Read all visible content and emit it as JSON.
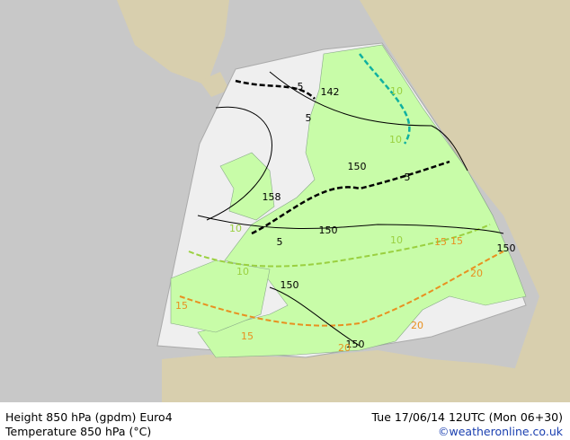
{
  "footer": {
    "title_line1": "Height 850 hPa (gpdm) Euro4",
    "title_line2": "Temperature 850 hPa (°C)",
    "date": "Tue 17/06/14 12UTC (Mon 06+30)",
    "credit": "©weatheronline.co.uk"
  },
  "map_labels": {
    "height_contours": [
      "142",
      "150",
      "158",
      "150",
      "150",
      "150",
      "150"
    ],
    "temperature_contours": [
      "5",
      "5",
      "5",
      "5",
      "10",
      "10",
      "10",
      "10",
      "10",
      "15",
      "15",
      "15",
      "15",
      "20",
      "20",
      "20"
    ]
  }
}
